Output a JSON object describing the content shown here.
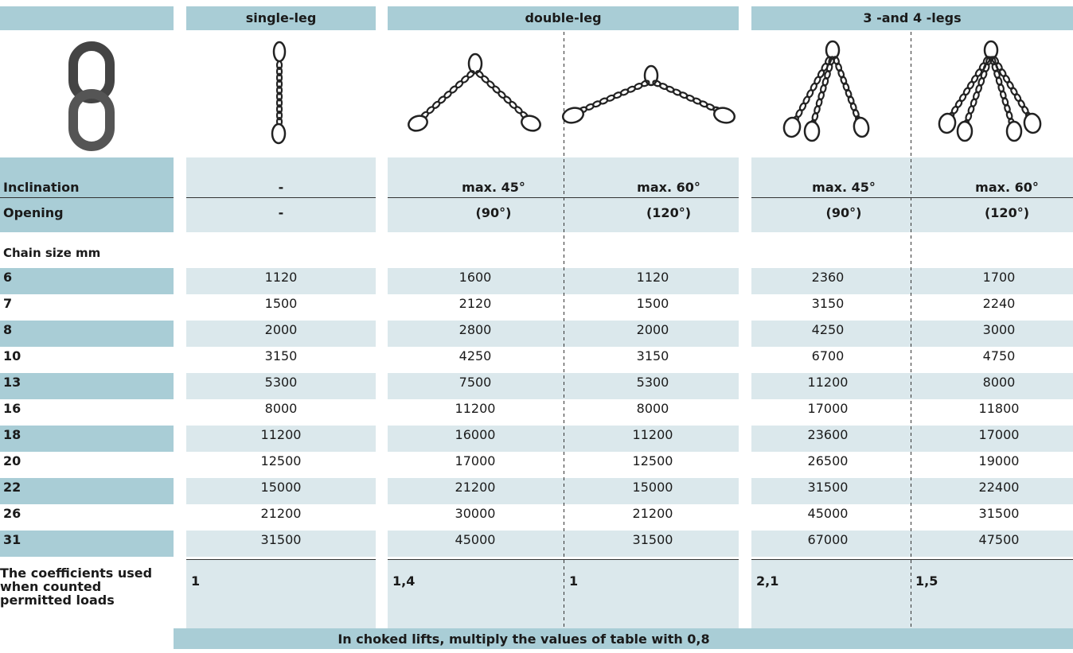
{
  "header": {
    "columns": [
      "single-leg",
      "double-leg",
      "3 -and 4 -legs"
    ]
  },
  "inclination": {
    "label": "Inclination",
    "values": [
      "-",
      "max. 45°",
      "max. 60°",
      "max. 45°",
      "max. 60°"
    ]
  },
  "opening": {
    "label": "Opening",
    "values": [
      "-",
      "(90°)",
      "(120°)",
      "(90°)",
      "(120°)"
    ]
  },
  "chain_size_label": "Chain size mm",
  "table": {
    "rows": [
      [
        6,
        1120,
        1600,
        1120,
        2360,
        1700
      ],
      [
        7,
        1500,
        2120,
        1500,
        3150,
        2240
      ],
      [
        8,
        2000,
        2800,
        2000,
        4250,
        3000
      ],
      [
        10,
        3150,
        4250,
        3150,
        6700,
        4750
      ],
      [
        13,
        5300,
        7500,
        5300,
        11200,
        8000
      ],
      [
        16,
        8000,
        11200,
        8000,
        17000,
        11800
      ],
      [
        18,
        11200,
        16000,
        11200,
        23600,
        17000
      ],
      [
        20,
        12500,
        17000,
        12500,
        26500,
        19000
      ],
      [
        22,
        15000,
        21200,
        15000,
        31500,
        22400
      ],
      [
        26,
        21200,
        30000,
        21200,
        45000,
        31500
      ],
      [
        31,
        31500,
        45000,
        31500,
        67000,
        47500
      ]
    ]
  },
  "coefficients": {
    "label": "The coefficients used when counted permitted loads",
    "values": [
      "1",
      "1,4",
      "1",
      "2,1",
      "1,5"
    ]
  },
  "footer": "In choked lifts, multiply the values of table with 0,8"
}
